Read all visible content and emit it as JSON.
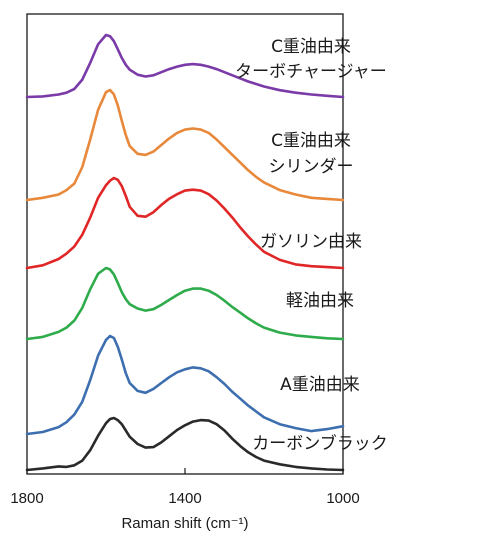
{
  "chart_data": {
    "type": "line",
    "xlabel": "Raman shift (cm⁻¹)",
    "xlim": [
      1800,
      1000
    ],
    "x_ticks": [
      "1800",
      "1400",
      "1000"
    ],
    "y_axis_shown": false,
    "stacked_offset_spectra": true,
    "x": [
      1800,
      1760,
      1720,
      1700,
      1680,
      1660,
      1640,
      1620,
      1600,
      1590,
      1580,
      1570,
      1560,
      1550,
      1540,
      1520,
      1500,
      1480,
      1460,
      1440,
      1420,
      1400,
      1380,
      1360,
      1340,
      1320,
      1300,
      1280,
      1260,
      1240,
      1220,
      1200,
      1160,
      1120,
      1080,
      1040,
      1000
    ],
    "series": [
      {
        "name": "C重油由来\nターボチャージャー",
        "color": "#7a3aa8",
        "values": [
          0.0,
          0.01,
          0.04,
          0.07,
          0.13,
          0.28,
          0.55,
          0.85,
          1.0,
          0.98,
          0.9,
          0.77,
          0.63,
          0.52,
          0.44,
          0.36,
          0.33,
          0.35,
          0.4,
          0.45,
          0.49,
          0.52,
          0.53,
          0.52,
          0.49,
          0.45,
          0.4,
          0.35,
          0.3,
          0.25,
          0.21,
          0.17,
          0.11,
          0.07,
          0.04,
          0.02,
          0.0
        ]
      },
      {
        "name": "C重油由来\nシリンダー",
        "color": "#e8883a",
        "values": [
          0.0,
          0.02,
          0.05,
          0.09,
          0.15,
          0.3,
          0.55,
          0.82,
          0.98,
          1.0,
          0.96,
          0.86,
          0.72,
          0.59,
          0.49,
          0.42,
          0.41,
          0.44,
          0.5,
          0.56,
          0.61,
          0.64,
          0.65,
          0.64,
          0.61,
          0.55,
          0.48,
          0.41,
          0.34,
          0.27,
          0.21,
          0.16,
          0.09,
          0.05,
          0.02,
          0.01,
          0.0
        ]
      },
      {
        "name": "ガソリン由来",
        "color": "#e02626",
        "values": [
          0.0,
          0.03,
          0.1,
          0.16,
          0.24,
          0.37,
          0.56,
          0.78,
          0.92,
          0.97,
          1.0,
          0.98,
          0.91,
          0.8,
          0.68,
          0.58,
          0.57,
          0.62,
          0.7,
          0.77,
          0.82,
          0.86,
          0.87,
          0.86,
          0.82,
          0.75,
          0.66,
          0.56,
          0.45,
          0.35,
          0.26,
          0.18,
          0.09,
          0.04,
          0.02,
          0.01,
          0.0
        ]
      },
      {
        "name": "軽油由来",
        "color": "#2eab4a",
        "values": [
          0.0,
          0.03,
          0.1,
          0.16,
          0.26,
          0.44,
          0.7,
          0.92,
          1.0,
          0.98,
          0.91,
          0.79,
          0.66,
          0.56,
          0.49,
          0.43,
          0.4,
          0.42,
          0.48,
          0.55,
          0.62,
          0.68,
          0.71,
          0.71,
          0.68,
          0.62,
          0.54,
          0.45,
          0.37,
          0.29,
          0.22,
          0.16,
          0.09,
          0.05,
          0.03,
          0.01,
          0.0
        ]
      },
      {
        "name": "A重油由来",
        "color": "#3d6fb0",
        "values": [
          0.0,
          0.02,
          0.07,
          0.12,
          0.2,
          0.33,
          0.55,
          0.8,
          0.96,
          1.0,
          0.98,
          0.89,
          0.76,
          0.62,
          0.52,
          0.44,
          0.42,
          0.46,
          0.52,
          0.58,
          0.63,
          0.66,
          0.68,
          0.67,
          0.64,
          0.58,
          0.51,
          0.43,
          0.36,
          0.29,
          0.23,
          0.17,
          0.1,
          0.06,
          0.03,
          0.05,
          0.08
        ]
      },
      {
        "name": "カーボンブラック",
        "color": "#2a2a2a",
        "values": [
          0.0,
          0.03,
          0.07,
          0.06,
          0.09,
          0.18,
          0.38,
          0.66,
          0.9,
          0.98,
          1.0,
          0.96,
          0.88,
          0.76,
          0.64,
          0.5,
          0.43,
          0.44,
          0.53,
          0.65,
          0.77,
          0.86,
          0.93,
          0.96,
          0.95,
          0.88,
          0.76,
          0.6,
          0.46,
          0.34,
          0.25,
          0.18,
          0.11,
          0.06,
          0.03,
          0.01,
          0.0
        ]
      }
    ]
  }
}
